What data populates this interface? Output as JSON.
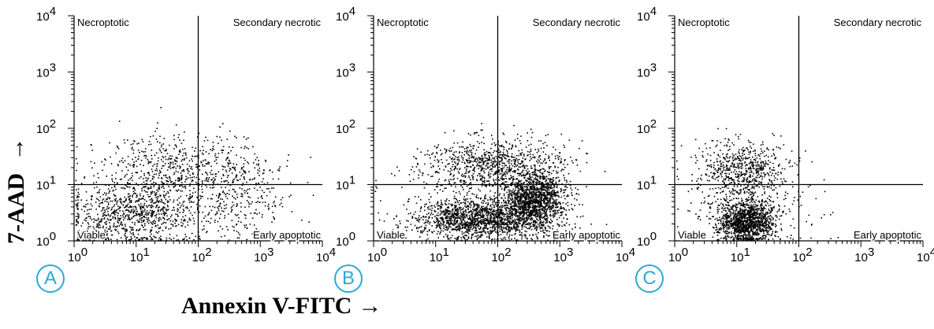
{
  "figure": {
    "ylabel": "7-AAD",
    "xlabel": "Annexin V-FITC",
    "arrow": "→"
  },
  "chart_data": [
    {
      "type": "scatter",
      "panel_label": "A",
      "x_scale": "log",
      "y_scale": "log",
      "xlim": [
        1,
        10000
      ],
      "ylim": [
        1,
        10000
      ],
      "x_ticks": [
        "10",
        "10",
        "10",
        "10",
        "10"
      ],
      "x_tick_exponents": [
        "0",
        "1",
        "2",
        "3",
        "4"
      ],
      "y_ticks": [
        "10",
        "10",
        "10",
        "10",
        "10"
      ],
      "y_tick_exponents": [
        "0",
        "1",
        "2",
        "3",
        "4"
      ],
      "gate": {
        "x": 100,
        "y": 10
      },
      "quadrants": {
        "top_left": "Necroptotic",
        "top_right": "Secondary necrotic",
        "bottom_left": "Viable",
        "bottom_right": "Early apoptotic"
      },
      "clusters": [
        {
          "x_center_log": 1.0,
          "y_center_log": 0.5,
          "x_spread_log": 0.55,
          "y_spread_log": 0.28,
          "count": 900
        },
        {
          "x_center_log": 1.7,
          "y_center_log": 1.3,
          "x_spread_log": 0.7,
          "y_spread_log": 0.3,
          "count": 650
        },
        {
          "x_center_log": 2.6,
          "y_center_log": 0.7,
          "x_spread_log": 0.45,
          "y_spread_log": 0.35,
          "count": 250
        }
      ]
    },
    {
      "type": "scatter",
      "panel_label": "B",
      "x_scale": "log",
      "y_scale": "log",
      "xlim": [
        1,
        10000
      ],
      "ylim": [
        1,
        10000
      ],
      "x_ticks": [
        "10",
        "10",
        "10",
        "10",
        "10"
      ],
      "x_tick_exponents": [
        "0",
        "1",
        "2",
        "3",
        "4"
      ],
      "y_ticks": [
        "10",
        "10",
        "10",
        "10",
        "10"
      ],
      "y_tick_exponents": [
        "0",
        "1",
        "2",
        "3",
        "4"
      ],
      "gate": {
        "x": 100,
        "y": 10
      },
      "quadrants": {
        "top_left": "Necroptotic",
        "top_right": "Secondary necrotic",
        "bottom_left": "Viable",
        "bottom_right": "Early apoptotic"
      },
      "clusters": [
        {
          "x_center_log": 1.7,
          "y_center_log": 0.4,
          "x_spread_log": 0.55,
          "y_spread_log": 0.18,
          "count": 1600
        },
        {
          "x_center_log": 2.6,
          "y_center_log": 0.75,
          "x_spread_log": 0.25,
          "y_spread_log": 0.25,
          "count": 1400
        },
        {
          "x_center_log": 1.9,
          "y_center_log": 1.35,
          "x_spread_log": 0.6,
          "y_spread_log": 0.25,
          "count": 900
        }
      ]
    },
    {
      "type": "scatter",
      "panel_label": "C",
      "x_scale": "log",
      "y_scale": "log",
      "xlim": [
        1,
        10000
      ],
      "ylim": [
        1,
        10000
      ],
      "x_ticks": [
        "10",
        "10",
        "10",
        "10",
        "10"
      ],
      "x_tick_exponents": [
        "0",
        "1",
        "2",
        "3",
        "4"
      ],
      "y_ticks": [
        "10",
        "10",
        "10",
        "10",
        "10"
      ],
      "y_tick_exponents": [
        "0",
        "1",
        "2",
        "3",
        "4"
      ],
      "gate": {
        "x": 100,
        "y": 10
      },
      "quadrants": {
        "top_left": "Necroptotic",
        "top_right": "Secondary necrotic",
        "bottom_left": "Viable",
        "bottom_right": "Early apoptotic"
      },
      "clusters": [
        {
          "x_center_log": 1.15,
          "y_center_log": 0.35,
          "x_spread_log": 0.22,
          "y_spread_log": 0.18,
          "count": 1200
        },
        {
          "x_center_log": 1.1,
          "y_center_log": 1.3,
          "x_spread_log": 0.35,
          "y_spread_log": 0.25,
          "count": 550
        },
        {
          "x_center_log": 1.2,
          "y_center_log": 0.7,
          "x_spread_log": 0.5,
          "y_spread_log": 0.4,
          "count": 300
        }
      ]
    }
  ]
}
